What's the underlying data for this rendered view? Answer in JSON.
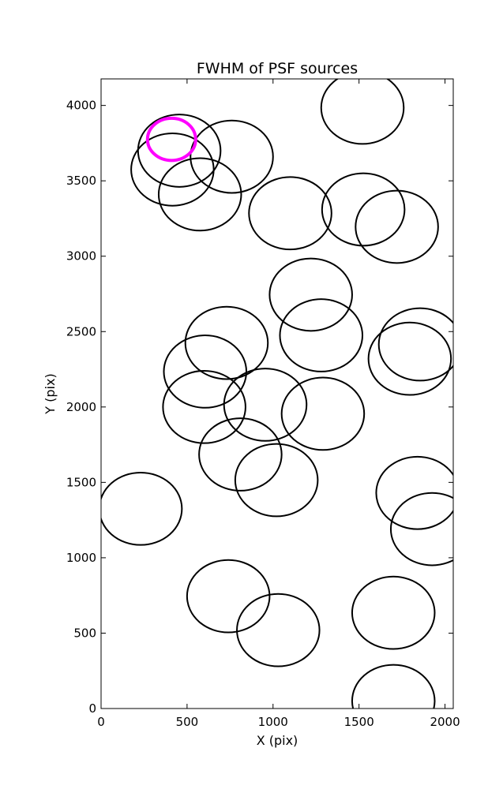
{
  "chart_data": {
    "type": "scatter",
    "title": "FWHM of PSF sources",
    "xlabel": "X (pix)",
    "ylabel": "Y (pix)",
    "xlim": [
      0,
      2048
    ],
    "ylim": [
      0,
      4176
    ],
    "xticks": [
      0,
      500,
      1000,
      1500,
      2000
    ],
    "yticks": [
      0,
      500,
      1000,
      1500,
      2000,
      2500,
      3000,
      3500,
      4000
    ],
    "xtick_labels": [
      "0",
      "500",
      "1000",
      "1500",
      "2000"
    ],
    "ytick_labels": [
      "0",
      "500",
      "1000",
      "1500",
      "2000",
      "2500",
      "3000",
      "3500",
      "4000"
    ],
    "grid": false,
    "circles": [
      {
        "x": 1520,
        "y": 3985,
        "r": 240,
        "color": "#000000"
      },
      {
        "x": 455,
        "y": 3700,
        "r": 240,
        "color": "#000000"
      },
      {
        "x": 760,
        "y": 3660,
        "r": 240,
        "color": "#000000"
      },
      {
        "x": 415,
        "y": 3575,
        "r": 240,
        "color": "#000000"
      },
      {
        "x": 575,
        "y": 3410,
        "r": 240,
        "color": "#000000"
      },
      {
        "x": 1100,
        "y": 3285,
        "r": 240,
        "color": "#000000"
      },
      {
        "x": 1525,
        "y": 3310,
        "r": 240,
        "color": "#000000"
      },
      {
        "x": 1720,
        "y": 3195,
        "r": 240,
        "color": "#000000"
      },
      {
        "x": 1220,
        "y": 2745,
        "r": 240,
        "color": "#000000"
      },
      {
        "x": 1280,
        "y": 2475,
        "r": 240,
        "color": "#000000"
      },
      {
        "x": 730,
        "y": 2425,
        "r": 240,
        "color": "#000000"
      },
      {
        "x": 1855,
        "y": 2415,
        "r": 240,
        "color": "#000000"
      },
      {
        "x": 1795,
        "y": 2320,
        "r": 240,
        "color": "#000000"
      },
      {
        "x": 605,
        "y": 2235,
        "r": 240,
        "color": "#000000"
      },
      {
        "x": 955,
        "y": 2015,
        "r": 240,
        "color": "#000000"
      },
      {
        "x": 600,
        "y": 2000,
        "r": 240,
        "color": "#000000"
      },
      {
        "x": 1290,
        "y": 1955,
        "r": 240,
        "color": "#000000"
      },
      {
        "x": 810,
        "y": 1685,
        "r": 240,
        "color": "#000000"
      },
      {
        "x": 1020,
        "y": 1515,
        "r": 240,
        "color": "#000000"
      },
      {
        "x": 1840,
        "y": 1430,
        "r": 240,
        "color": "#000000"
      },
      {
        "x": 230,
        "y": 1325,
        "r": 240,
        "color": "#000000"
      },
      {
        "x": 1925,
        "y": 1190,
        "r": 240,
        "color": "#000000"
      },
      {
        "x": 740,
        "y": 745,
        "r": 240,
        "color": "#000000"
      },
      {
        "x": 1700,
        "y": 635,
        "r": 240,
        "color": "#000000"
      },
      {
        "x": 1030,
        "y": 520,
        "r": 240,
        "color": "#000000"
      },
      {
        "x": 1700,
        "y": 50,
        "r": 240,
        "color": "#000000"
      },
      {
        "x": 410,
        "y": 3775,
        "r": 140,
        "color": "#ff00ff",
        "highlight": true
      }
    ]
  }
}
